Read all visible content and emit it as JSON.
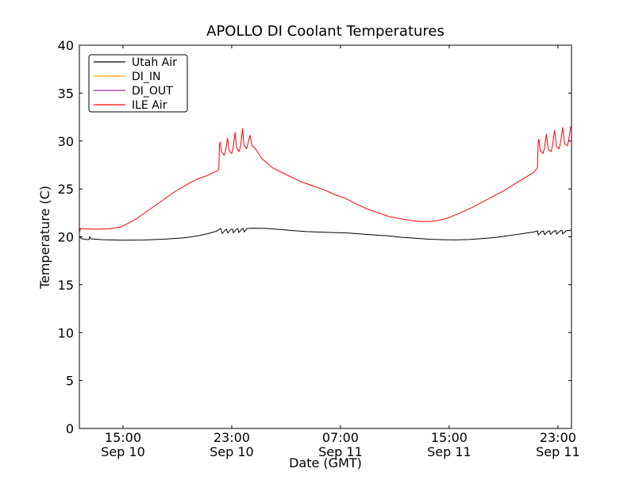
{
  "window": {
    "background": "#ffffff"
  },
  "chart_data": {
    "type": "line",
    "title": "APOLLO DI Coolant Temperatures",
    "xlabel": "Date (GMT)",
    "ylabel": "Temperature (C)",
    "x_unit": "hours since Sep 10 00:00 GMT",
    "xlim": [
      11.79,
      48.0
    ],
    "ylim": [
      0,
      40
    ],
    "grid": false,
    "yticks": [
      0,
      5,
      10,
      15,
      20,
      25,
      30,
      35,
      40
    ],
    "xticks": [
      {
        "t": 15,
        "time": "15:00",
        "date": "Sep 10"
      },
      {
        "t": 23,
        "time": "23:00",
        "date": "Sep 10"
      },
      {
        "t": 31,
        "time": "07:00",
        "date": "Sep 11"
      },
      {
        "t": 39,
        "time": "15:00",
        "date": "Sep 11"
      },
      {
        "t": 47,
        "time": "23:00",
        "date": "Sep 11"
      }
    ],
    "legend": {
      "position": "upper left",
      "entries": [
        {
          "label": "Utah Air",
          "color": "#000000"
        },
        {
          "label": "DI_IN",
          "color": "#ffa500"
        },
        {
          "label": "DI_OUT",
          "color": "#993399"
        },
        {
          "label": "ILE Air",
          "color": "#ff0000"
        }
      ]
    },
    "series": [
      {
        "name": "Utah Air",
        "color": "#000000",
        "points": [
          [
            11.8,
            20.05
          ],
          [
            11.95,
            19.8
          ],
          [
            12.3,
            19.72
          ],
          [
            12.5,
            19.72
          ],
          [
            12.55,
            20.02
          ],
          [
            12.65,
            19.78
          ],
          [
            13.5,
            19.7
          ],
          [
            15.0,
            19.65
          ],
          [
            16.5,
            19.67
          ],
          [
            18.0,
            19.75
          ],
          [
            19.5,
            19.9
          ],
          [
            20.5,
            20.1
          ],
          [
            21.3,
            20.35
          ],
          [
            21.9,
            20.6
          ],
          [
            22.15,
            20.85
          ],
          [
            22.2,
            20.85
          ],
          [
            22.3,
            20.35
          ],
          [
            22.55,
            20.75
          ],
          [
            22.62,
            20.8
          ],
          [
            22.7,
            20.4
          ],
          [
            22.95,
            20.78
          ],
          [
            23.05,
            20.82
          ],
          [
            23.12,
            20.42
          ],
          [
            23.35,
            20.8
          ],
          [
            23.45,
            20.85
          ],
          [
            23.52,
            20.45
          ],
          [
            23.75,
            20.82
          ],
          [
            23.85,
            20.88
          ],
          [
            23.92,
            20.5
          ],
          [
            24.1,
            20.85
          ],
          [
            24.5,
            20.9
          ],
          [
            25.5,
            20.88
          ],
          [
            26.5,
            20.78
          ],
          [
            27.5,
            20.65
          ],
          [
            28.5,
            20.55
          ],
          [
            29.5,
            20.5
          ],
          [
            30.5,
            20.45
          ],
          [
            31.5,
            20.4
          ],
          [
            32.5,
            20.3
          ],
          [
            33.5,
            20.2
          ],
          [
            34.5,
            20.1
          ],
          [
            35.5,
            19.95
          ],
          [
            36.5,
            19.85
          ],
          [
            37.5,
            19.75
          ],
          [
            38.5,
            19.7
          ],
          [
            39.5,
            19.68
          ],
          [
            40.5,
            19.72
          ],
          [
            41.5,
            19.82
          ],
          [
            42.5,
            19.95
          ],
          [
            43.5,
            20.15
          ],
          [
            44.5,
            20.35
          ],
          [
            45.2,
            20.5
          ],
          [
            45.45,
            20.6
          ],
          [
            45.5,
            20.62
          ],
          [
            45.55,
            20.2
          ],
          [
            45.8,
            20.55
          ],
          [
            45.95,
            20.6
          ],
          [
            46.0,
            20.22
          ],
          [
            46.25,
            20.55
          ],
          [
            46.4,
            20.62
          ],
          [
            46.45,
            20.25
          ],
          [
            46.7,
            20.58
          ],
          [
            46.85,
            20.65
          ],
          [
            46.9,
            20.28
          ],
          [
            47.15,
            20.6
          ],
          [
            47.3,
            20.68
          ],
          [
            47.35,
            20.3
          ],
          [
            47.6,
            20.62
          ],
          [
            47.9,
            20.68
          ],
          [
            48.0,
            20.7
          ]
        ]
      },
      {
        "name": "DI_IN",
        "color": "#ffa500",
        "points": [
          [
            11.79,
            0.0
          ],
          [
            48.0,
            0.0
          ]
        ]
      },
      {
        "name": "DI_OUT",
        "color": "#993399",
        "points": [
          [
            11.79,
            0.0
          ],
          [
            48.0,
            0.0
          ]
        ]
      },
      {
        "name": "ILE Air",
        "color": "#ff0000",
        "points": [
          [
            11.8,
            20.9
          ],
          [
            11.83,
            20.6
          ],
          [
            11.87,
            20.88
          ],
          [
            12.0,
            20.85
          ],
          [
            13.0,
            20.8
          ],
          [
            14.0,
            20.85
          ],
          [
            14.8,
            21.0
          ],
          [
            15.5,
            21.5
          ],
          [
            16.0,
            21.9
          ],
          [
            16.5,
            22.4
          ],
          [
            17.0,
            22.9
          ],
          [
            17.6,
            23.5
          ],
          [
            18.2,
            24.1
          ],
          [
            18.8,
            24.7
          ],
          [
            19.4,
            25.2
          ],
          [
            20.0,
            25.7
          ],
          [
            20.6,
            26.1
          ],
          [
            21.2,
            26.4
          ],
          [
            21.8,
            26.8
          ],
          [
            22.05,
            27.0
          ],
          [
            22.1,
            29.6
          ],
          [
            22.15,
            29.9
          ],
          [
            22.25,
            28.9
          ],
          [
            22.45,
            28.5
          ],
          [
            22.55,
            29.0
          ],
          [
            22.7,
            30.3
          ],
          [
            22.8,
            29.0
          ],
          [
            23.0,
            28.7
          ],
          [
            23.1,
            29.3
          ],
          [
            23.25,
            30.9
          ],
          [
            23.35,
            29.3
          ],
          [
            23.55,
            28.9
          ],
          [
            23.65,
            29.5
          ],
          [
            23.8,
            31.3
          ],
          [
            23.9,
            29.6
          ],
          [
            24.1,
            29.2
          ],
          [
            24.2,
            29.8
          ],
          [
            24.35,
            30.6
          ],
          [
            24.5,
            29.5
          ],
          [
            24.7,
            29.3
          ],
          [
            25.2,
            28.2
          ],
          [
            26.0,
            27.2
          ],
          [
            27.0,
            26.5
          ],
          [
            28.0,
            25.8
          ],
          [
            29.0,
            25.3
          ],
          [
            29.8,
            24.9
          ],
          [
            30.6,
            24.4
          ],
          [
            31.4,
            24.0
          ],
          [
            32.2,
            23.4
          ],
          [
            33.0,
            22.9
          ],
          [
            33.8,
            22.5
          ],
          [
            34.6,
            22.1
          ],
          [
            35.4,
            21.9
          ],
          [
            36.2,
            21.7
          ],
          [
            36.9,
            21.6
          ],
          [
            37.6,
            21.6
          ],
          [
            38.2,
            21.7
          ],
          [
            39.0,
            22.0
          ],
          [
            39.8,
            22.5
          ],
          [
            40.6,
            23.0
          ],
          [
            41.4,
            23.6
          ],
          [
            42.2,
            24.2
          ],
          [
            43.0,
            24.8
          ],
          [
            43.8,
            25.5
          ],
          [
            44.6,
            26.2
          ],
          [
            45.2,
            26.7
          ],
          [
            45.5,
            27.2
          ],
          [
            45.55,
            29.9
          ],
          [
            45.6,
            30.2
          ],
          [
            45.7,
            29.0
          ],
          [
            45.9,
            28.7
          ],
          [
            46.0,
            29.2
          ],
          [
            46.15,
            30.7
          ],
          [
            46.3,
            29.1
          ],
          [
            46.5,
            28.9
          ],
          [
            46.6,
            29.5
          ],
          [
            46.75,
            31.1
          ],
          [
            46.9,
            29.4
          ],
          [
            47.1,
            29.2
          ],
          [
            47.2,
            29.9
          ],
          [
            47.35,
            31.4
          ],
          [
            47.5,
            29.7
          ],
          [
            47.7,
            29.5
          ],
          [
            47.8,
            30.2
          ],
          [
            47.95,
            31.5
          ],
          [
            48.0,
            31.4
          ]
        ]
      }
    ]
  }
}
